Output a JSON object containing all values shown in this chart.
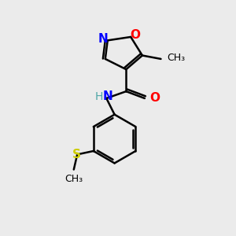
{
  "background_color": "#ebebeb",
  "bond_color": "#000000",
  "atom_colors": {
    "N": "#0000ff",
    "O": "#ff0000",
    "S": "#cccc00",
    "H": "#4da6a6",
    "C": "#000000"
  },
  "bond_width": 1.8,
  "figsize": [
    3.0,
    3.0
  ],
  "dpi": 100
}
